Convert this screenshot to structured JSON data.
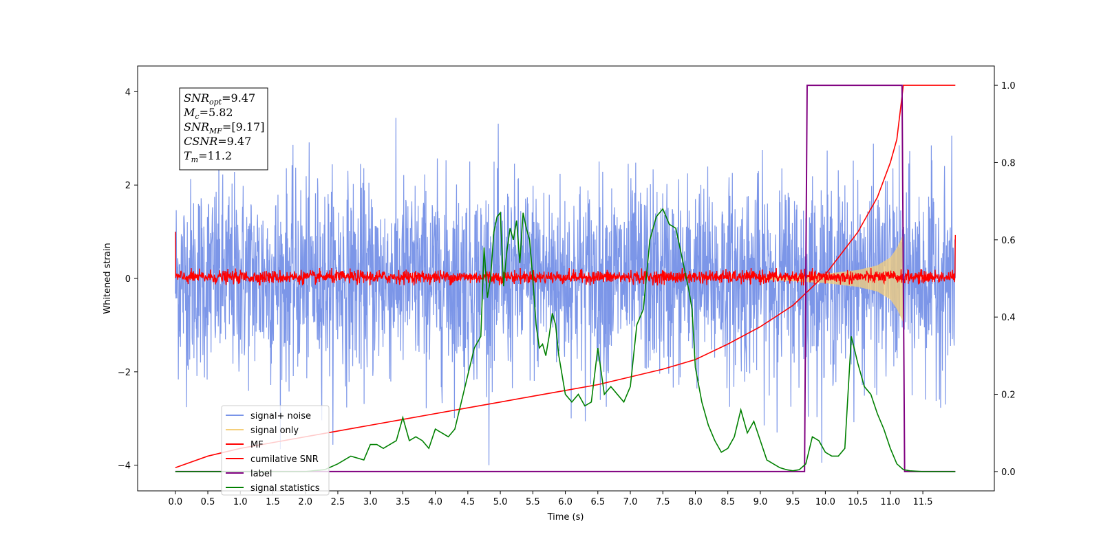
{
  "chart_data": {
    "type": "line",
    "title": "",
    "xlabel": "Time (s)",
    "ylabel": "Whitened strain",
    "xlim": [
      -0.58,
      12.6
    ],
    "ylim": [
      -4.55,
      4.55
    ],
    "y2lim": [
      -0.05,
      1.05
    ],
    "xticks": [
      0.0,
      0.5,
      1.0,
      1.5,
      2.0,
      2.5,
      3.0,
      3.5,
      4.0,
      4.5,
      5.0,
      5.5,
      6.0,
      6.5,
      7.0,
      7.5,
      8.0,
      8.5,
      9.0,
      9.5,
      10.0,
      10.5,
      11.0,
      11.5
    ],
    "xtick_labels": [
      "0.0",
      "0.5",
      "1.0",
      "1.5",
      "2.0",
      "2.5",
      "3.0",
      "3.5",
      "4.0",
      "4.5",
      "5.0",
      "5.5",
      "6.0",
      "6.5",
      "7.0",
      "7.5",
      "8.0",
      "8.5",
      "9.0",
      "9.5",
      "10.0",
      "10.5",
      "11.0",
      "11.5"
    ],
    "yticks": [
      -4,
      -2,
      0,
      2,
      4
    ],
    "ytick_labels": [
      "−4",
      "−2",
      "0",
      "2",
      "4"
    ],
    "y2ticks": [
      0.0,
      0.2,
      0.4,
      0.6,
      0.8,
      1.0
    ],
    "y2tick_labels": [
      "0.0",
      "0.2",
      "0.4",
      "0.6",
      "0.8",
      "1.0"
    ],
    "grid": false,
    "legend_position": "lower-left",
    "legend": [
      {
        "label": "signal+ noise",
        "color": "#7994e8"
      },
      {
        "label": "signal only",
        "color": "#f5cf7a"
      },
      {
        "label": "MF",
        "color": "#ff0000"
      },
      {
        "label": "cumilative SNR",
        "color": "#ff0000"
      },
      {
        "label": "label",
        "color": "#800080"
      },
      {
        "label": "signal statistics",
        "color": "#008000"
      }
    ],
    "annotation": [
      {
        "name": "SNR",
        "sub": "opt",
        "value": "=9.47"
      },
      {
        "name": "M",
        "sub": "c",
        "value": "=5.82"
      },
      {
        "name": "SNR",
        "sub": "MF",
        "value": "=[9.17]"
      },
      {
        "name": "CSNR",
        "sub": "",
        "value": "=9.47"
      },
      {
        "name": "T",
        "sub": "m",
        "value": "=11.2"
      }
    ],
    "series": [
      {
        "name": "signal+ noise",
        "axis": "left",
        "color": "#7994e8",
        "description_values": {
          "t_start": 0.0,
          "t_end": 12.0,
          "typical_range": [
            -2.4,
            2.4
          ],
          "max": 4.08,
          "min": -4.0
        }
      },
      {
        "name": "signal only",
        "axis": "left",
        "color": "#f5cf7a",
        "envelope": {
          "t": [
            9.0,
            9.5,
            10.0,
            10.5,
            10.8,
            11.0,
            11.1,
            11.2
          ],
          "amp": [
            0.03,
            0.06,
            0.1,
            0.18,
            0.28,
            0.45,
            0.65,
            0.95
          ]
        }
      },
      {
        "name": "MF",
        "axis": "left",
        "color": "#ff0000",
        "description_values": {
          "typical_range": [
            -0.15,
            0.22
          ],
          "edge_values": [
            1.0,
            0.93
          ]
        }
      },
      {
        "name": "cumilative SNR",
        "axis": "right",
        "color": "#ff0000",
        "x": [
          0.0,
          0.5,
          1.0,
          1.5,
          2.0,
          2.5,
          3.0,
          3.5,
          4.0,
          4.5,
          5.0,
          5.5,
          6.0,
          6.5,
          7.0,
          7.5,
          8.0,
          8.5,
          9.0,
          9.5,
          10.0,
          10.5,
          10.8,
          11.0,
          11.1,
          11.2,
          12.0
        ],
        "values": [
          0.01,
          0.04,
          0.06,
          0.075,
          0.09,
          0.105,
          0.12,
          0.135,
          0.15,
          0.165,
          0.18,
          0.195,
          0.21,
          0.225,
          0.245,
          0.265,
          0.29,
          0.33,
          0.375,
          0.43,
          0.51,
          0.62,
          0.71,
          0.8,
          0.86,
          1.0,
          1.0
        ]
      },
      {
        "name": "label",
        "axis": "right",
        "color": "#800080",
        "x": [
          0.0,
          9.68,
          9.72,
          11.18,
          11.22,
          12.0
        ],
        "values": [
          0.0,
          0.0,
          1.0,
          1.0,
          0.0,
          0.0
        ]
      },
      {
        "name": "signal statistics",
        "axis": "right",
        "color": "#008000",
        "x": [
          0.0,
          0.5,
          1.0,
          1.5,
          2.0,
          2.3,
          2.5,
          2.7,
          2.9,
          3.0,
          3.1,
          3.2,
          3.3,
          3.4,
          3.5,
          3.6,
          3.7,
          3.8,
          3.9,
          4.0,
          4.1,
          4.2,
          4.3,
          4.4,
          4.5,
          4.6,
          4.7,
          4.75,
          4.8,
          4.85,
          4.9,
          4.95,
          5.0,
          5.05,
          5.1,
          5.15,
          5.2,
          5.25,
          5.3,
          5.35,
          5.4,
          5.45,
          5.5,
          5.55,
          5.6,
          5.65,
          5.7,
          5.75,
          5.8,
          5.85,
          5.9,
          6.0,
          6.1,
          6.2,
          6.3,
          6.4,
          6.5,
          6.6,
          6.7,
          6.8,
          6.9,
          7.0,
          7.1,
          7.2,
          7.3,
          7.4,
          7.5,
          7.6,
          7.7,
          7.8,
          7.9,
          7.95,
          8.0,
          8.1,
          8.2,
          8.3,
          8.4,
          8.5,
          8.6,
          8.7,
          8.8,
          8.9,
          9.0,
          9.1,
          9.2,
          9.3,
          9.4,
          9.5,
          9.6,
          9.7,
          9.8,
          9.9,
          10.0,
          10.1,
          10.2,
          10.3,
          10.4,
          10.5,
          10.6,
          10.7,
          10.8,
          10.9,
          11.0,
          11.1,
          11.2,
          11.3,
          11.5,
          11.7,
          12.0
        ],
        "values": [
          0.0,
          0.0,
          0.0,
          0.0,
          0.0,
          0.005,
          0.02,
          0.04,
          0.03,
          0.07,
          0.07,
          0.06,
          0.07,
          0.08,
          0.14,
          0.08,
          0.09,
          0.08,
          0.06,
          0.11,
          0.1,
          0.09,
          0.11,
          0.18,
          0.25,
          0.32,
          0.35,
          0.58,
          0.45,
          0.5,
          0.62,
          0.66,
          0.67,
          0.48,
          0.57,
          0.63,
          0.6,
          0.65,
          0.54,
          0.67,
          0.63,
          0.6,
          0.5,
          0.38,
          0.32,
          0.33,
          0.3,
          0.35,
          0.41,
          0.38,
          0.3,
          0.2,
          0.18,
          0.2,
          0.17,
          0.18,
          0.32,
          0.2,
          0.22,
          0.2,
          0.18,
          0.22,
          0.38,
          0.42,
          0.6,
          0.66,
          0.68,
          0.64,
          0.63,
          0.55,
          0.47,
          0.42,
          0.27,
          0.18,
          0.12,
          0.08,
          0.05,
          0.06,
          0.09,
          0.16,
          0.1,
          0.13,
          0.08,
          0.03,
          0.02,
          0.01,
          0.005,
          0.002,
          0.005,
          0.02,
          0.09,
          0.08,
          0.05,
          0.04,
          0.04,
          0.06,
          0.35,
          0.28,
          0.22,
          0.2,
          0.15,
          0.11,
          0.06,
          0.02,
          0.005,
          0.002,
          0.0,
          0.0,
          0.0
        ]
      }
    ]
  }
}
